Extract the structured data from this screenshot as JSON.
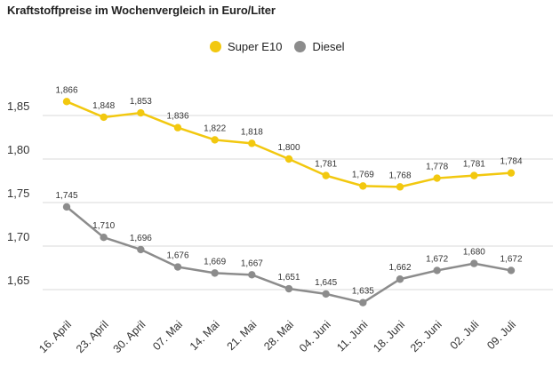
{
  "chart_data": {
    "type": "line",
    "title": "Kraftstoffpreise im Wochenvergleich in Euro/Liter",
    "categories": [
      "16. April",
      "23. April",
      "30. April",
      "07. Mai",
      "14. Mai",
      "21. Mai",
      "28. Mai",
      "04. Juni",
      "11. Juni",
      "18. Juni",
      "25. Juni",
      "02. Juli",
      "09. Juli"
    ],
    "series": [
      {
        "name": "Super E10",
        "color": "#f2c80f",
        "values": [
          1.866,
          1.848,
          1.853,
          1.836,
          1.822,
          1.818,
          1.8,
          1.781,
          1.769,
          1.768,
          1.778,
          1.781,
          1.784
        ],
        "labels": [
          "1,866",
          "1,848",
          "1,853",
          "1,836",
          "1,822",
          "1,818",
          "1,800",
          "1,781",
          "1,769",
          "1,768",
          "1,778",
          "1,781",
          "1,784"
        ]
      },
      {
        "name": "Diesel",
        "color": "#8c8c8c",
        "values": [
          1.745,
          1.71,
          1.696,
          1.676,
          1.669,
          1.667,
          1.651,
          1.645,
          1.635,
          1.662,
          1.672,
          1.68,
          1.672
        ],
        "labels": [
          "1,745",
          "1,710",
          "1,696",
          "1,676",
          "1,669",
          "1,667",
          "1,651",
          "1,645",
          "1,635",
          "1,662",
          "1,672",
          "1,680",
          "1,672"
        ]
      }
    ],
    "yticks": [
      1.65,
      1.7,
      1.75,
      1.8,
      1.85
    ],
    "ytick_labels": [
      "1,65",
      "1,70",
      "1,75",
      "1,80",
      "1,85"
    ],
    "ylim": [
      1.625,
      1.885
    ],
    "grid": true,
    "legend_position": "top-center"
  }
}
